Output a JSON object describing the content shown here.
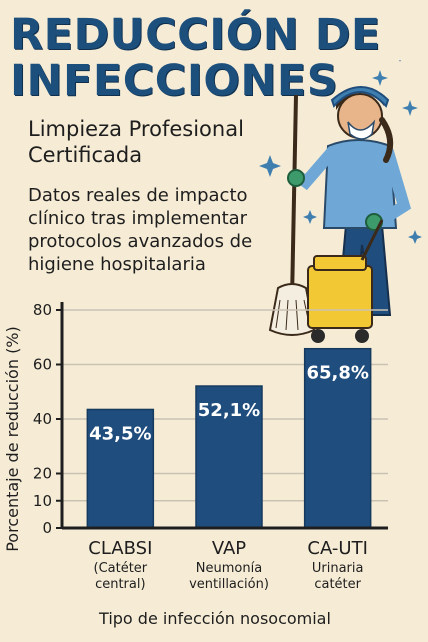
{
  "header": {
    "title": "REDUCCIÓN DE INFECCIONES",
    "subtitle": "Limpieza Profesional Certificada",
    "description": "Datos reales de impacto clínico tras implementar protocolos avanzados de higiene hospitalaria"
  },
  "illustration": {
    "icon": "cleaning-staff-with-mop-and-bucket-icon"
  },
  "colors": {
    "title": "#1d4f7c",
    "bar": "#1f4d7d",
    "background": "#f6ecd6"
  },
  "chart_data": {
    "type": "bar",
    "categories": [
      "CLABSI",
      "VAP",
      "CA-UTI"
    ],
    "category_sublabels": [
      [
        "(Catéter",
        "central)"
      ],
      [
        "Neumonía",
        "ventillación)"
      ],
      [
        "Urinaria",
        "catéter"
      ]
    ],
    "values": [
      43.5,
      52.1,
      65.8
    ],
    "value_labels": [
      "43,5%",
      "52,1%",
      "65,8%"
    ],
    "yticks": [
      0,
      10,
      20,
      40,
      60,
      80
    ],
    "ylim": [
      0,
      80
    ],
    "xlabel": "Tipo de infección nosocomial",
    "ylabel": "Porcentaje de reducción (%)",
    "grid": true
  }
}
